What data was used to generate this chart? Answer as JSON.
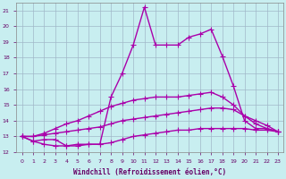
{
  "xlabel": "Windchill (Refroidissement éolien,°C)",
  "xlim": [
    -0.5,
    23.5
  ],
  "ylim": [
    12,
    21.5
  ],
  "yticks": [
    12,
    13,
    14,
    15,
    16,
    17,
    18,
    19,
    20,
    21
  ],
  "xticks": [
    0,
    1,
    2,
    3,
    4,
    5,
    6,
    7,
    8,
    9,
    10,
    11,
    12,
    13,
    14,
    15,
    16,
    17,
    18,
    19,
    20,
    21,
    22,
    23
  ],
  "bg_color": "#c8eef0",
  "grid_color": "#a0b8c8",
  "line_color": "#aa00aa",
  "line_width": 1.0,
  "marker": "+",
  "markersize": 4,
  "series": [
    [
      13.0,
      12.7,
      12.8,
      12.8,
      12.4,
      12.4,
      12.5,
      12.5,
      15.5,
      17.0,
      18.8,
      21.2,
      18.8,
      18.8,
      18.8,
      19.3,
      19.5,
      19.8,
      18.1,
      16.2,
      14.0,
      13.5,
      13.5,
      13.3
    ],
    [
      13.0,
      13.0,
      13.2,
      13.5,
      13.8,
      14.0,
      14.3,
      14.6,
      14.9,
      15.1,
      15.3,
      15.4,
      15.5,
      15.5,
      15.5,
      15.6,
      15.7,
      15.8,
      15.5,
      15.0,
      14.3,
      13.8,
      13.5,
      13.3
    ],
    [
      13.0,
      13.0,
      13.1,
      13.2,
      13.3,
      13.4,
      13.5,
      13.6,
      13.8,
      14.0,
      14.1,
      14.2,
      14.3,
      14.4,
      14.5,
      14.6,
      14.7,
      14.8,
      14.8,
      14.7,
      14.3,
      14.0,
      13.7,
      13.3
    ],
    [
      13.0,
      12.7,
      12.5,
      12.4,
      12.4,
      12.5,
      12.5,
      12.5,
      12.6,
      12.8,
      13.0,
      13.1,
      13.2,
      13.3,
      13.4,
      13.4,
      13.5,
      13.5,
      13.5,
      13.5,
      13.5,
      13.4,
      13.4,
      13.3
    ]
  ]
}
